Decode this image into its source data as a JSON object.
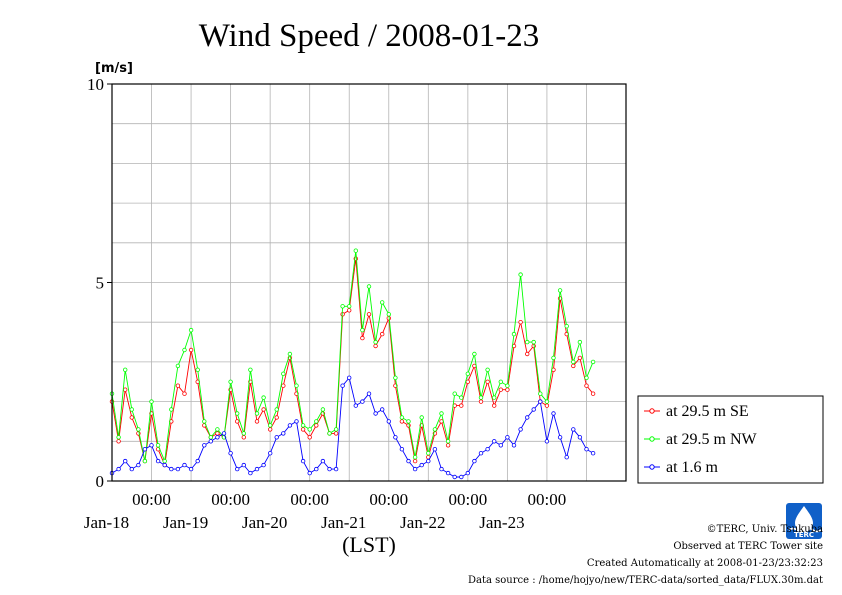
{
  "chart_data": {
    "type": "line",
    "title": "Wind Speed / 2008-01-23",
    "ylabel": "[m/s]",
    "xlabel": "(LST)",
    "ylim": [
      0,
      10
    ],
    "y_ticks": [
      "0",
      "5",
      "10"
    ],
    "x_range": [
      "2008-01-17 12:00",
      "2008-01-23 24:00"
    ],
    "x_ticks": [
      {
        "time": "2008-01-18 00:00",
        "label": "00:00",
        "date": "Jan-18"
      },
      {
        "time": "2008-01-19 00:00",
        "label": "00:00",
        "date": "Jan-19"
      },
      {
        "time": "2008-01-20 00:00",
        "label": "00:00",
        "date": "Jan-20"
      },
      {
        "time": "2008-01-21 00:00",
        "label": "00:00",
        "date": "Jan-21"
      },
      {
        "time": "2008-01-22 00:00",
        "label": "00:00",
        "date": "Jan-22"
      },
      {
        "time": "2008-01-23 00:00",
        "label": "00:00",
        "date": "Jan-23"
      }
    ],
    "grid": true,
    "legend_position": "right",
    "series": [
      {
        "name": "at 29.5 m SE",
        "color": "#ff0000",
        "points": [
          [
            "2008-01-17 12:00",
            2.0
          ],
          [
            "2008-01-17 14:00",
            1.0
          ],
          [
            "2008-01-17 16:00",
            2.3
          ],
          [
            "2008-01-17 18:00",
            1.6
          ],
          [
            "2008-01-17 20:00",
            1.2
          ],
          [
            "2008-01-17 22:00",
            0.5
          ],
          [
            "2008-01-18 00:00",
            1.7
          ],
          [
            "2008-01-18 02:00",
            0.8
          ],
          [
            "2008-01-18 04:00",
            0.4
          ],
          [
            "2008-01-18 06:00",
            1.5
          ],
          [
            "2008-01-18 08:00",
            2.4
          ],
          [
            "2008-01-18 10:00",
            2.2
          ],
          [
            "2008-01-18 12:00",
            3.3
          ],
          [
            "2008-01-18 14:00",
            2.5
          ],
          [
            "2008-01-18 16:00",
            1.4
          ],
          [
            "2008-01-18 18:00",
            1.1
          ],
          [
            "2008-01-18 20:00",
            1.2
          ],
          [
            "2008-01-18 22:00",
            1.1
          ],
          [
            "2008-01-19 00:00",
            2.3
          ],
          [
            "2008-01-19 02:00",
            1.5
          ],
          [
            "2008-01-19 04:00",
            1.1
          ],
          [
            "2008-01-19 06:00",
            2.5
          ],
          [
            "2008-01-19 08:00",
            1.5
          ],
          [
            "2008-01-19 10:00",
            1.8
          ],
          [
            "2008-01-19 12:00",
            1.3
          ],
          [
            "2008-01-19 14:00",
            1.6
          ],
          [
            "2008-01-19 16:00",
            2.4
          ],
          [
            "2008-01-19 18:00",
            3.1
          ],
          [
            "2008-01-19 20:00",
            2.2
          ],
          [
            "2008-01-19 22:00",
            1.3
          ],
          [
            "2008-01-20 00:00",
            1.1
          ],
          [
            "2008-01-20 02:00",
            1.4
          ],
          [
            "2008-01-20 04:00",
            1.7
          ],
          [
            "2008-01-20 06:00",
            1.2
          ],
          [
            "2008-01-20 08:00",
            1.2
          ],
          [
            "2008-01-20 10:00",
            4.2
          ],
          [
            "2008-01-20 12:00",
            4.3
          ],
          [
            "2008-01-20 14:00",
            5.6
          ],
          [
            "2008-01-20 16:00",
            3.6
          ],
          [
            "2008-01-20 18:00",
            4.2
          ],
          [
            "2008-01-20 20:00",
            3.4
          ],
          [
            "2008-01-20 22:00",
            3.7
          ],
          [
            "2008-01-21 00:00",
            4.1
          ],
          [
            "2008-01-21 02:00",
            2.4
          ],
          [
            "2008-01-21 04:00",
            1.5
          ],
          [
            "2008-01-21 06:00",
            1.4
          ],
          [
            "2008-01-21 08:00",
            0.5
          ],
          [
            "2008-01-21 10:00",
            1.4
          ],
          [
            "2008-01-21 12:00",
            0.6
          ],
          [
            "2008-01-21 14:00",
            1.2
          ],
          [
            "2008-01-21 16:00",
            1.5
          ],
          [
            "2008-01-21 18:00",
            0.9
          ],
          [
            "2008-01-21 20:00",
            1.9
          ],
          [
            "2008-01-21 22:00",
            1.9
          ],
          [
            "2008-01-22 00:00",
            2.5
          ],
          [
            "2008-01-22 02:00",
            2.9
          ],
          [
            "2008-01-22 04:00",
            2.0
          ],
          [
            "2008-01-22 06:00",
            2.5
          ],
          [
            "2008-01-22 08:00",
            1.9
          ],
          [
            "2008-01-22 10:00",
            2.3
          ],
          [
            "2008-01-22 12:00",
            2.3
          ],
          [
            "2008-01-22 14:00",
            3.4
          ],
          [
            "2008-01-22 16:00",
            4.0
          ],
          [
            "2008-01-22 18:00",
            3.2
          ],
          [
            "2008-01-22 20:00",
            3.4
          ],
          [
            "2008-01-22 22:00",
            2.0
          ],
          [
            "2008-01-23 00:00",
            1.9
          ],
          [
            "2008-01-23 02:00",
            2.8
          ],
          [
            "2008-01-23 04:00",
            4.6
          ],
          [
            "2008-01-23 06:00",
            3.7
          ],
          [
            "2008-01-23 08:00",
            2.9
          ],
          [
            "2008-01-23 10:00",
            3.1
          ],
          [
            "2008-01-23 12:00",
            2.4
          ],
          [
            "2008-01-23 14:00",
            2.2
          ]
        ]
      },
      {
        "name": "at 29.5 m NW",
        "color": "#00ff00",
        "points": [
          [
            "2008-01-17 12:00",
            2.2
          ],
          [
            "2008-01-17 14:00",
            1.1
          ],
          [
            "2008-01-17 16:00",
            2.8
          ],
          [
            "2008-01-17 18:00",
            1.8
          ],
          [
            "2008-01-17 20:00",
            1.3
          ],
          [
            "2008-01-17 22:00",
            0.5
          ],
          [
            "2008-01-18 00:00",
            2.0
          ],
          [
            "2008-01-18 02:00",
            0.9
          ],
          [
            "2008-01-18 04:00",
            0.5
          ],
          [
            "2008-01-18 06:00",
            1.8
          ],
          [
            "2008-01-18 08:00",
            2.9
          ],
          [
            "2008-01-18 10:00",
            3.3
          ],
          [
            "2008-01-18 12:00",
            3.8
          ],
          [
            "2008-01-18 14:00",
            2.8
          ],
          [
            "2008-01-18 16:00",
            1.5
          ],
          [
            "2008-01-18 18:00",
            1.1
          ],
          [
            "2008-01-18 20:00",
            1.3
          ],
          [
            "2008-01-18 22:00",
            1.1
          ],
          [
            "2008-01-19 00:00",
            2.5
          ],
          [
            "2008-01-19 02:00",
            1.7
          ],
          [
            "2008-01-19 04:00",
            1.2
          ],
          [
            "2008-01-19 06:00",
            2.8
          ],
          [
            "2008-01-19 08:00",
            1.7
          ],
          [
            "2008-01-19 10:00",
            2.1
          ],
          [
            "2008-01-19 12:00",
            1.4
          ],
          [
            "2008-01-19 14:00",
            1.8
          ],
          [
            "2008-01-19 16:00",
            2.7
          ],
          [
            "2008-01-19 18:00",
            3.2
          ],
          [
            "2008-01-19 20:00",
            2.4
          ],
          [
            "2008-01-19 22:00",
            1.4
          ],
          [
            "2008-01-20 00:00",
            1.3
          ],
          [
            "2008-01-20 02:00",
            1.5
          ],
          [
            "2008-01-20 04:00",
            1.8
          ],
          [
            "2008-01-20 06:00",
            1.2
          ],
          [
            "2008-01-20 08:00",
            1.3
          ],
          [
            "2008-01-20 10:00",
            4.4
          ],
          [
            "2008-01-20 12:00",
            4.4
          ],
          [
            "2008-01-20 14:00",
            5.8
          ],
          [
            "2008-01-20 16:00",
            3.8
          ],
          [
            "2008-01-20 18:00",
            4.9
          ],
          [
            "2008-01-20 20:00",
            3.5
          ],
          [
            "2008-01-20 22:00",
            4.5
          ],
          [
            "2008-01-21 00:00",
            4.2
          ],
          [
            "2008-01-21 02:00",
            2.6
          ],
          [
            "2008-01-21 04:00",
            1.6
          ],
          [
            "2008-01-21 06:00",
            1.5
          ],
          [
            "2008-01-21 08:00",
            0.6
          ],
          [
            "2008-01-21 10:00",
            1.6
          ],
          [
            "2008-01-21 12:00",
            0.7
          ],
          [
            "2008-01-21 14:00",
            1.3
          ],
          [
            "2008-01-21 16:00",
            1.7
          ],
          [
            "2008-01-21 18:00",
            1.0
          ],
          [
            "2008-01-21 20:00",
            2.2
          ],
          [
            "2008-01-21 22:00",
            2.1
          ],
          [
            "2008-01-22 00:00",
            2.7
          ],
          [
            "2008-01-22 02:00",
            3.2
          ],
          [
            "2008-01-22 04:00",
            2.1
          ],
          [
            "2008-01-22 06:00",
            2.8
          ],
          [
            "2008-01-22 08:00",
            2.1
          ],
          [
            "2008-01-22 10:00",
            2.5
          ],
          [
            "2008-01-22 12:00",
            2.4
          ],
          [
            "2008-01-22 14:00",
            3.7
          ],
          [
            "2008-01-22 16:00",
            5.2
          ],
          [
            "2008-01-22 18:00",
            3.5
          ],
          [
            "2008-01-22 20:00",
            3.5
          ],
          [
            "2008-01-22 22:00",
            2.2
          ],
          [
            "2008-01-23 00:00",
            2.0
          ],
          [
            "2008-01-23 02:00",
            3.1
          ],
          [
            "2008-01-23 04:00",
            4.8
          ],
          [
            "2008-01-23 06:00",
            3.9
          ],
          [
            "2008-01-23 08:00",
            3.0
          ],
          [
            "2008-01-23 10:00",
            3.5
          ],
          [
            "2008-01-23 12:00",
            2.6
          ],
          [
            "2008-01-23 14:00",
            3.0
          ]
        ]
      },
      {
        "name": "at 1.6 m",
        "color": "#0000ff",
        "points": [
          [
            "2008-01-17 12:00",
            0.2
          ],
          [
            "2008-01-17 14:00",
            0.3
          ],
          [
            "2008-01-17 16:00",
            0.5
          ],
          [
            "2008-01-17 18:00",
            0.3
          ],
          [
            "2008-01-17 20:00",
            0.4
          ],
          [
            "2008-01-17 22:00",
            0.8
          ],
          [
            "2008-01-18 00:00",
            0.9
          ],
          [
            "2008-01-18 02:00",
            0.5
          ],
          [
            "2008-01-18 04:00",
            0.4
          ],
          [
            "2008-01-18 06:00",
            0.3
          ],
          [
            "2008-01-18 08:00",
            0.3
          ],
          [
            "2008-01-18 10:00",
            0.4
          ],
          [
            "2008-01-18 12:00",
            0.3
          ],
          [
            "2008-01-18 14:00",
            0.5
          ],
          [
            "2008-01-18 16:00",
            0.9
          ],
          [
            "2008-01-18 18:00",
            1.0
          ],
          [
            "2008-01-18 20:00",
            1.1
          ],
          [
            "2008-01-18 22:00",
            1.2
          ],
          [
            "2008-01-19 00:00",
            0.7
          ],
          [
            "2008-01-19 02:00",
            0.3
          ],
          [
            "2008-01-19 04:00",
            0.4
          ],
          [
            "2008-01-19 06:00",
            0.2
          ],
          [
            "2008-01-19 08:00",
            0.3
          ],
          [
            "2008-01-19 10:00",
            0.4
          ],
          [
            "2008-01-19 12:00",
            0.7
          ],
          [
            "2008-01-19 14:00",
            1.1
          ],
          [
            "2008-01-19 16:00",
            1.2
          ],
          [
            "2008-01-19 18:00",
            1.4
          ],
          [
            "2008-01-19 20:00",
            1.5
          ],
          [
            "2008-01-19 22:00",
            0.5
          ],
          [
            "2008-01-20 00:00",
            0.2
          ],
          [
            "2008-01-20 02:00",
            0.3
          ],
          [
            "2008-01-20 04:00",
            0.5
          ],
          [
            "2008-01-20 06:00",
            0.3
          ],
          [
            "2008-01-20 08:00",
            0.3
          ],
          [
            "2008-01-20 10:00",
            2.4
          ],
          [
            "2008-01-20 12:00",
            2.6
          ],
          [
            "2008-01-20 14:00",
            1.9
          ],
          [
            "2008-01-20 16:00",
            2.0
          ],
          [
            "2008-01-20 18:00",
            2.2
          ],
          [
            "2008-01-20 20:00",
            1.7
          ],
          [
            "2008-01-20 22:00",
            1.8
          ],
          [
            "2008-01-21 00:00",
            1.5
          ],
          [
            "2008-01-21 02:00",
            1.1
          ],
          [
            "2008-01-21 04:00",
            0.8
          ],
          [
            "2008-01-21 06:00",
            0.5
          ],
          [
            "2008-01-21 08:00",
            0.3
          ],
          [
            "2008-01-21 10:00",
            0.4
          ],
          [
            "2008-01-21 12:00",
            0.5
          ],
          [
            "2008-01-21 14:00",
            0.8
          ],
          [
            "2008-01-21 16:00",
            0.3
          ],
          [
            "2008-01-21 18:00",
            0.2
          ],
          [
            "2008-01-21 20:00",
            0.1
          ],
          [
            "2008-01-21 22:00",
            0.1
          ],
          [
            "2008-01-22 00:00",
            0.2
          ],
          [
            "2008-01-22 02:00",
            0.5
          ],
          [
            "2008-01-22 04:00",
            0.7
          ],
          [
            "2008-01-22 06:00",
            0.8
          ],
          [
            "2008-01-22 08:00",
            1.0
          ],
          [
            "2008-01-22 10:00",
            0.9
          ],
          [
            "2008-01-22 12:00",
            1.1
          ],
          [
            "2008-01-22 14:00",
            0.9
          ],
          [
            "2008-01-22 16:00",
            1.3
          ],
          [
            "2008-01-22 18:00",
            1.6
          ],
          [
            "2008-01-22 20:00",
            1.8
          ],
          [
            "2008-01-22 22:00",
            2.0
          ],
          [
            "2008-01-23 00:00",
            1.0
          ],
          [
            "2008-01-23 02:00",
            1.7
          ],
          [
            "2008-01-23 04:00",
            1.1
          ],
          [
            "2008-01-23 06:00",
            0.6
          ],
          [
            "2008-01-23 08:00",
            1.3
          ],
          [
            "2008-01-23 10:00",
            1.1
          ],
          [
            "2008-01-23 12:00",
            0.8
          ],
          [
            "2008-01-23 14:00",
            0.7
          ]
        ]
      }
    ]
  },
  "logo": {
    "text": "TERC",
    "color": "#1060c8"
  },
  "footer": {
    "copyright": "©TERC, Univ. Tsukuba",
    "observed": "Observed at TERC Tower site",
    "created": "Created Automatically at 2008-01-23/23:32:23",
    "source": "Data source : /home/hojyo/new/TERC-data/sorted_data/FLUX.30m.dat"
  }
}
